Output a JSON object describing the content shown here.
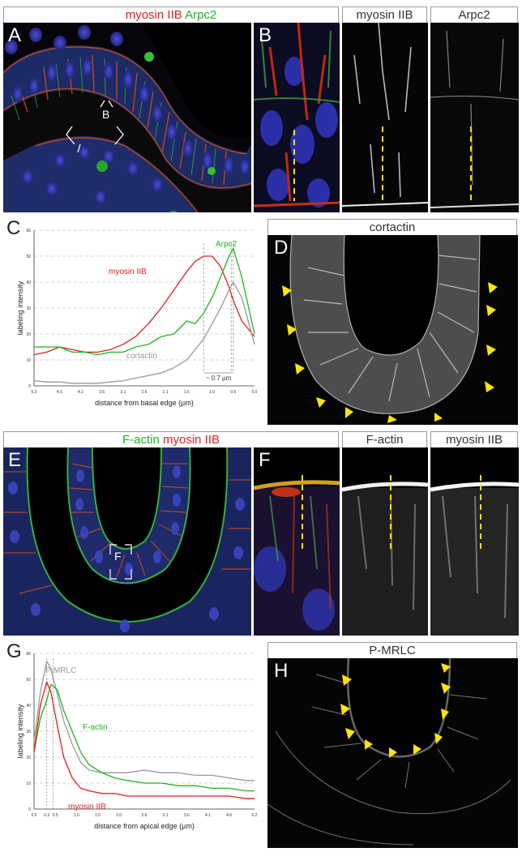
{
  "panels": {
    "A": {
      "letter": "A",
      "title_part1": "myosin IIB",
      "title_part2": "Arpc2",
      "inset_label": "B"
    },
    "B": {
      "letter": "B",
      "title_mid": "myosin IIB",
      "title_right": "Arpc2"
    },
    "C": {
      "letter": "C",
      "annotation": "~ 0.7 µm"
    },
    "D": {
      "letter": "D",
      "title": "cortactin"
    },
    "E": {
      "letter": "E",
      "title_part1": "F-actin",
      "title_part2": "myosin IIB",
      "inset_label": "F"
    },
    "F": {
      "letter": "F",
      "title_mid": "F-actin",
      "title_right": "myosin IIB"
    },
    "G": {
      "letter": "G"
    },
    "H": {
      "letter": "H",
      "title": "P-MRLC"
    }
  },
  "colors": {
    "red": "#e02020",
    "green": "#22b222",
    "gray": "#999999",
    "yellow": "#f2e400"
  },
  "chart_data": [
    {
      "type": "line",
      "panel": "C",
      "xlabel": "distance from basal edge (µm)",
      "ylabel": "labeling intensity",
      "xlim": [
        5.2,
        0.0
      ],
      "ylim": [
        0,
        60
      ],
      "x_reversed": true,
      "x_ticks": [
        "5.2",
        "4.6",
        "4.1",
        "3.6",
        "3.1",
        "2.6",
        "2.1",
        "1.6",
        "1.0",
        "0.5",
        "0.0"
      ],
      "y_ticks": [
        "0",
        "10",
        "20",
        "30",
        "40",
        "50",
        "60"
      ],
      "x": [
        5.2,
        4.9,
        4.6,
        4.3,
        4.0,
        3.7,
        3.4,
        3.1,
        2.8,
        2.5,
        2.2,
        1.9,
        1.6,
        1.4,
        1.2,
        1.0,
        0.8,
        0.6,
        0.5,
        0.3,
        0.0
      ],
      "series": [
        {
          "name": "myosin IIB",
          "color": "red",
          "values": [
            12,
            13,
            15,
            14,
            13,
            13,
            14,
            16,
            19,
            24,
            30,
            37,
            44,
            48,
            50,
            50,
            46,
            38,
            33,
            25,
            19
          ]
        },
        {
          "name": "Arpc2",
          "color": "green",
          "values": [
            15,
            15,
            15,
            13,
            13,
            12,
            13,
            13,
            15,
            16,
            19,
            20,
            25,
            24,
            28,
            34,
            42,
            50,
            53,
            42,
            20
          ]
        },
        {
          "name": "cortactin",
          "color": "gray",
          "values": [
            2,
            1.5,
            1.5,
            1,
            1,
            1,
            1.5,
            2,
            3,
            4,
            5,
            7,
            10,
            14,
            18,
            24,
            30,
            37,
            40,
            34,
            16
          ]
        }
      ]
    },
    {
      "type": "line",
      "panel": "G",
      "xlabel": "distance from apical edge (µm)",
      "ylabel": "labeling intensity",
      "xlim": [
        0.0,
        5.2
      ],
      "ylim": [
        0,
        60
      ],
      "x_ticks": [
        "0.0",
        "0.3",
        "0.5",
        "1.0",
        "1.5",
        "2.0",
        "2.6",
        "3.1",
        "3.6",
        "4.1",
        "4.6",
        "5.2"
      ],
      "y_ticks": [
        "0",
        "10",
        "20",
        "30",
        "40",
        "50",
        "60"
      ],
      "x": [
        0.0,
        0.15,
        0.3,
        0.4,
        0.55,
        0.7,
        0.9,
        1.1,
        1.3,
        1.6,
        1.9,
        2.2,
        2.6,
        3.0,
        3.4,
        3.8,
        4.2,
        4.6,
        5.0,
        5.2
      ],
      "series": [
        {
          "name": "P-MRLC",
          "color": "gray",
          "values": [
            26,
            45,
            57,
            54,
            44,
            34,
            25,
            18,
            15,
            14,
            14,
            14,
            15,
            14,
            14,
            13,
            13,
            12,
            11,
            11
          ]
        },
        {
          "name": "F-actin",
          "color": "green",
          "values": [
            22,
            35,
            42,
            48,
            46,
            38,
            30,
            22,
            17,
            14,
            12,
            11,
            10,
            10,
            9,
            9,
            8,
            8,
            7,
            7
          ]
        },
        {
          "name": "myosin IIB",
          "color": "red",
          "values": [
            22,
            40,
            49,
            45,
            32,
            20,
            12,
            8,
            7,
            6,
            6,
            5,
            5,
            5,
            5,
            5,
            5,
            5,
            4,
            4
          ]
        }
      ]
    }
  ]
}
